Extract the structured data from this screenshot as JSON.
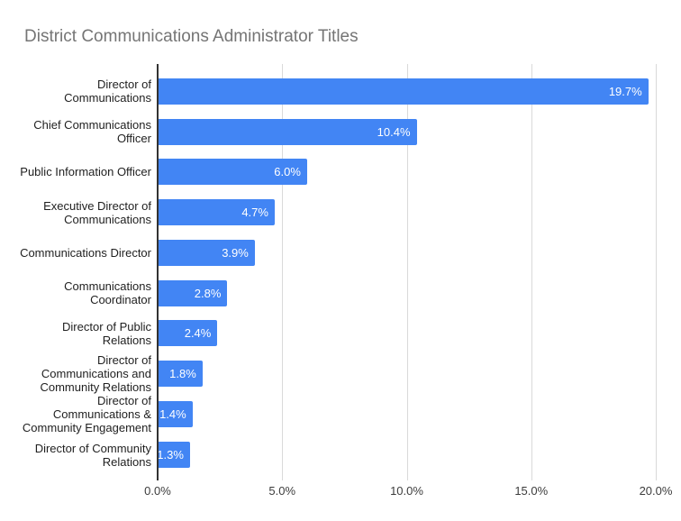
{
  "title": "District Communications Administrator Titles",
  "colors": {
    "bar": "#4285f4",
    "title_text": "#757575",
    "gridline": "#d9d9d9",
    "baseline": "#333333",
    "axis_label": "#3c3c3c",
    "category_label": "#1f1f1f",
    "value_label": "#ffffff",
    "background": "#ffffff"
  },
  "chart_data": {
    "type": "bar",
    "orientation": "horizontal",
    "title": "District Communications Administrator Titles",
    "categories": [
      "Director of Communications",
      "Chief Communications Officer",
      "Public Information Officer",
      "Executive Director of Communications",
      "Communications Director",
      "Communications Coordinator",
      "Director of Public Relations",
      "Director of Communications and Community Relations",
      "Director of Communications & Community Engagement",
      "Director of Community Relations"
    ],
    "category_display": [
      "Director of\nCommunications",
      "Chief Communications\nOfficer",
      "Public Information Officer",
      "Executive Director of\nCommunications",
      "Communications Director",
      "Communications\nCoordinator",
      "Director of Public\nRelations",
      "Director of\nCommunications and\nCommunity Relations",
      "Director of\nCommunications &\nCommunity Engagement",
      "Director of Community\nRelations"
    ],
    "values": [
      19.7,
      10.4,
      6.0,
      4.7,
      3.9,
      2.8,
      2.4,
      1.8,
      1.4,
      1.3
    ],
    "value_labels": [
      "19.7%",
      "10.4%",
      "6.0%",
      "4.7%",
      "3.9%",
      "2.8%",
      "2.4%",
      "1.8%",
      "1.4%",
      "1.3%"
    ],
    "xlabel": "",
    "ylabel": "",
    "xlim": [
      0,
      20
    ],
    "x_ticks": [
      {
        "value": 0,
        "label": "0.0%"
      },
      {
        "value": 5,
        "label": "5.0%"
      },
      {
        "value": 10,
        "label": "10.0%"
      },
      {
        "value": 15,
        "label": "15.0%"
      },
      {
        "value": 20,
        "label": "20.0%"
      }
    ],
    "grid": true,
    "legend": "none"
  }
}
